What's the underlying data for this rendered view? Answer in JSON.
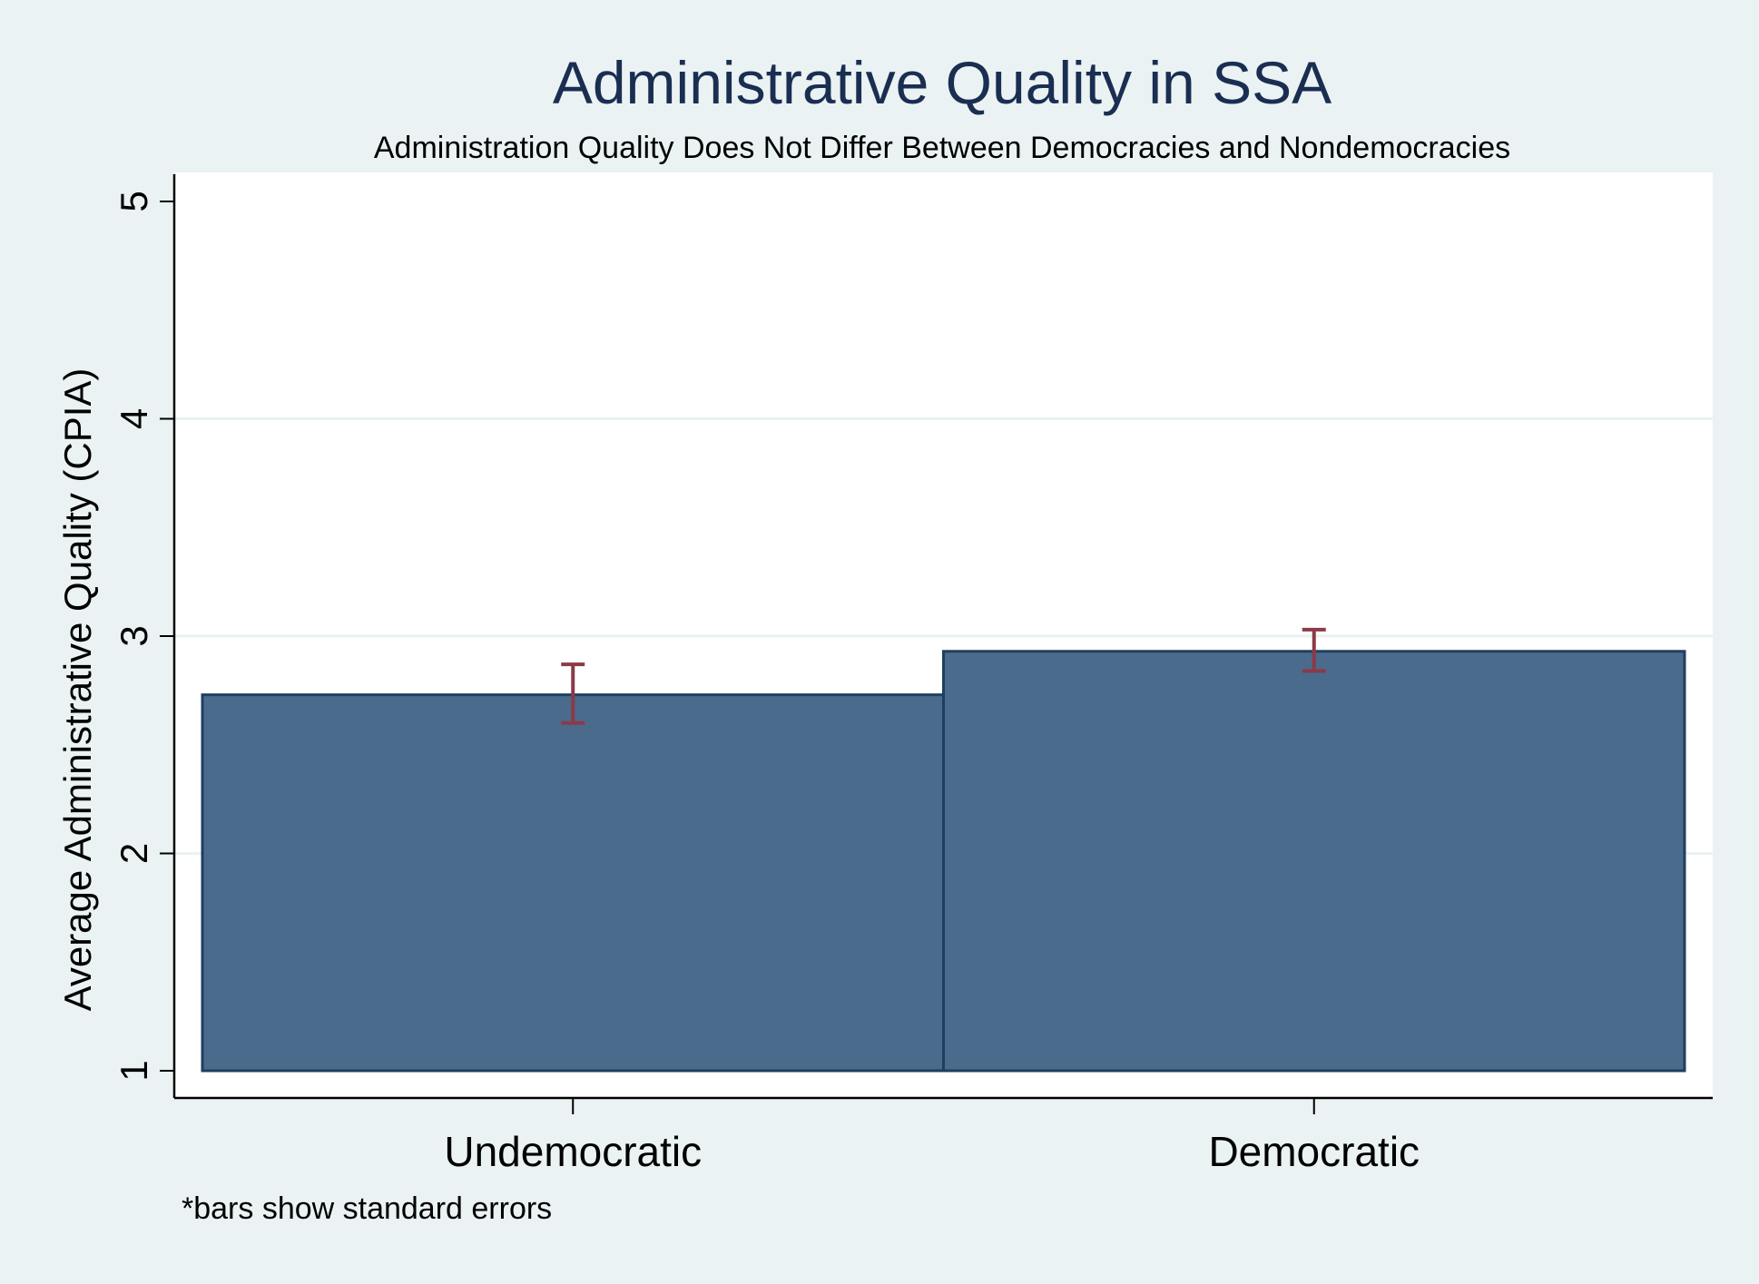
{
  "chart_data": {
    "type": "bar",
    "title": "Administrative Quality in SSA",
    "subtitle": "Administration Quality Does Not Differ Between Democracies and Nondemocracies",
    "ylabel": "Average Administrative Quality (CPIA)",
    "xlabel": "",
    "note": "*bars show standard errors",
    "categories": [
      "Undemocratic",
      "Democratic"
    ],
    "values": [
      2.73,
      2.93
    ],
    "error_bars": [
      {
        "low": 2.6,
        "high": 2.87
      },
      {
        "low": 2.84,
        "high": 3.03
      }
    ],
    "yticks": [
      "1",
      "2",
      "3",
      "4",
      "5"
    ],
    "ylim": [
      1,
      5
    ],
    "grid": true,
    "colors": {
      "background": "#eaf2f3",
      "plot_background": "#ffffff",
      "bar_fill": "#4a6b8c",
      "bar_stroke": "#1f3f60",
      "error_bar": "#8b3a48",
      "title": "#1a2e52",
      "gridline": "#eaf2f3"
    }
  }
}
